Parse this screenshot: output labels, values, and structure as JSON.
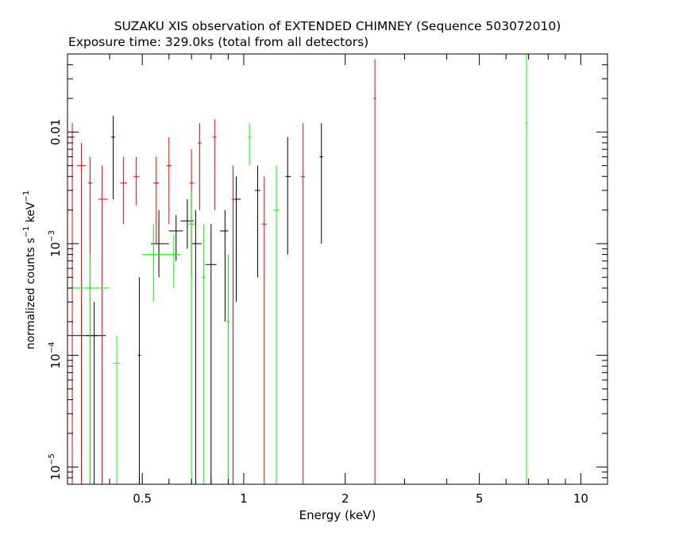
{
  "chart_data": {
    "type": "scatter",
    "title": "SUZAKU XIS observation of EXTENDED CHIMNEY (Sequence 503072010)",
    "subtitle": "Exposure time: 329.0ks (total from all detectors)",
    "xlabel": "Energy (keV)",
    "ylabel": "normalized counts s",
    "ylabel_sup1": "−1",
    "ylabel_mid": " keV",
    "ylabel_sup2": "−1",
    "x_scale": "log",
    "y_scale": "log",
    "xlim": [
      0.3,
      12.0
    ],
    "ylim": [
      7e-06,
      0.05
    ],
    "x_ticks": [
      {
        "value": 0.5,
        "label": "0.5"
      },
      {
        "value": 1,
        "label": "1"
      },
      {
        "value": 2,
        "label": "2"
      },
      {
        "value": 5,
        "label": "5"
      },
      {
        "value": 10,
        "label": "10"
      }
    ],
    "y_ticks": [
      {
        "value": 0.01,
        "label": "0.01"
      },
      {
        "value": 0.001,
        "label": "10",
        "sup": "−3"
      },
      {
        "value": 0.0001,
        "label": "10",
        "sup": "−4"
      },
      {
        "value": 1e-05,
        "label": "10",
        "sup": "−5"
      }
    ],
    "grid": false,
    "series": [
      {
        "color": "#000000",
        "points": [
          {
            "x": 0.33,
            "y": 0.00015,
            "xerr": [
              0.3,
              0.37
            ],
            "yerr": [
              7e-06,
              0.0003
            ]
          },
          {
            "x": 0.36,
            "y": 0.00015,
            "xerr": [
              0.34,
              0.39
            ],
            "yerr": [
              7e-06,
              0.0003
            ]
          },
          {
            "x": 0.41,
            "y": 0.009,
            "xerr": [
              0.405,
              0.415
            ],
            "yerr": [
              0.0025,
              0.014
            ]
          },
          {
            "x": 0.49,
            "y": 0.0001,
            "xerr": [
              0.485,
              0.495
            ],
            "yerr": [
              7e-06,
              0.0005
            ]
          },
          {
            "x": 0.56,
            "y": 0.001,
            "xerr": [
              0.53,
              0.6
            ],
            "yerr": [
              0.0005,
              0.002
            ]
          },
          {
            "x": 0.63,
            "y": 0.0013,
            "xerr": [
              0.6,
              0.66
            ],
            "yerr": [
              0.0007,
              0.0018
            ]
          },
          {
            "x": 0.68,
            "y": 0.0016,
            "xerr": [
              0.65,
              0.71
            ],
            "yerr": [
              0.0009,
              0.0025
            ]
          },
          {
            "x": 0.72,
            "y": 0.001,
            "xerr": [
              0.7,
              0.75
            ],
            "yerr": [
              7e-06,
              0.002
            ]
          },
          {
            "x": 0.8,
            "y": 0.00065,
            "xerr": [
              0.77,
              0.83
            ],
            "yerr": [
              7e-06,
              0.0015
            ]
          },
          {
            "x": 0.88,
            "y": 0.0013,
            "xerr": [
              0.85,
              0.9
            ],
            "yerr": [
              0.0002,
              0.002
            ]
          },
          {
            "x": 0.95,
            "y": 0.0025,
            "xerr": [
              0.93,
              0.98
            ],
            "yerr": [
              0.0003,
              0.004
            ]
          },
          {
            "x": 1.1,
            "y": 0.003,
            "xerr": [
              1.08,
              1.12
            ],
            "yerr": [
              0.0005,
              0.005
            ]
          },
          {
            "x": 1.35,
            "y": 0.004,
            "xerr": [
              1.33,
              1.38
            ],
            "yerr": [
              0.0008,
              0.009
            ]
          },
          {
            "x": 1.7,
            "y": 0.006,
            "xerr": [
              1.68,
              1.72
            ],
            "yerr": [
              0.001,
              0.012
            ]
          }
        ]
      },
      {
        "color": "#ff0000",
        "points": [
          {
            "x": 0.31,
            "y": 0.009,
            "xerr": [
              0.305,
              0.315
            ],
            "yerr": [
              7e-06,
              0.012
            ]
          },
          {
            "x": 0.33,
            "y": 0.005,
            "xerr": [
              0.32,
              0.34
            ],
            "yerr": [
              7e-06,
              0.008
            ]
          },
          {
            "x": 0.35,
            "y": 0.0035,
            "xerr": [
              0.345,
              0.355
            ],
            "yerr": [
              7e-06,
              0.006
            ]
          },
          {
            "x": 0.38,
            "y": 0.0025,
            "xerr": [
              0.37,
              0.395
            ],
            "yerr": [
              7e-06,
              0.005
            ]
          },
          {
            "x": 0.44,
            "y": 0.0035,
            "xerr": [
              0.43,
              0.45
            ],
            "yerr": [
              0.0015,
              0.006
            ]
          },
          {
            "x": 0.48,
            "y": 0.004,
            "xerr": [
              0.47,
              0.49
            ],
            "yerr": [
              0.0022,
              0.006
            ]
          },
          {
            "x": 0.55,
            "y": 0.0035,
            "xerr": [
              0.54,
              0.56
            ],
            "yerr": [
              0.001,
              0.006
            ]
          },
          {
            "x": 0.6,
            "y": 0.005,
            "xerr": [
              0.59,
              0.61
            ],
            "yerr": [
              0.0015,
              0.009
            ]
          },
          {
            "x": 0.7,
            "y": 0.0035,
            "xerr": [
              0.69,
              0.71
            ],
            "yerr": [
              0.0005,
              0.007
            ]
          },
          {
            "x": 0.74,
            "y": 0.008,
            "xerr": [
              0.73,
              0.75
            ],
            "yerr": [
              0.002,
              0.012
            ]
          },
          {
            "x": 0.82,
            "y": 0.009,
            "xerr": [
              0.81,
              0.83
            ],
            "yerr": [
              0.002,
              0.013
            ]
          },
          {
            "x": 0.93,
            "y": 0.0025,
            "xerr": [
              0.92,
              0.94
            ],
            "yerr": [
              7e-06,
              0.005
            ]
          },
          {
            "x": 1.15,
            "y": 0.0015,
            "xerr": [
              1.13,
              1.17
            ],
            "yerr": [
              7e-06,
              0.004
            ]
          },
          {
            "x": 1.5,
            "y": 0.004,
            "xerr": [
              1.48,
              1.52
            ],
            "yerr": [
              7e-06,
              0.012
            ]
          },
          {
            "x": 2.45,
            "y": 0.02,
            "xerr": [
              2.43,
              2.47
            ],
            "yerr": [
              7e-06,
              0.045
            ]
          }
        ]
      },
      {
        "color": "#00ff00",
        "points": [
          {
            "x": 0.35,
            "y": 0.0004,
            "xerr": [
              0.3,
              0.4
            ],
            "yerr": [
              7e-06,
              0.0008
            ]
          },
          {
            "x": 0.42,
            "y": 8.5e-05,
            "xerr": [
              0.41,
              0.43
            ],
            "yerr": [
              7e-06,
              0.00015
            ]
          },
          {
            "x": 0.54,
            "y": 0.0008,
            "xerr": [
              0.5,
              0.59
            ],
            "yerr": [
              0.0003,
              0.0015
            ]
          },
          {
            "x": 0.62,
            "y": 0.0008,
            "xerr": [
              0.59,
              0.65
            ],
            "yerr": [
              0.0004,
              0.0012
            ]
          },
          {
            "x": 0.7,
            "y": 0.0015,
            "xerr": [
              0.68,
              0.72
            ],
            "yerr": [
              7e-06,
              0.003
            ]
          },
          {
            "x": 0.76,
            "y": 0.0005,
            "xerr": [
              0.75,
              0.77
            ],
            "yerr": [
              7e-06,
              0.0015
            ]
          },
          {
            "x": 0.9,
            "y": 0.0002,
            "xerr": [
              0.89,
              0.91
            ],
            "yerr": [
              7e-06,
              0.0008
            ]
          },
          {
            "x": 1.04,
            "y": 0.009,
            "xerr": [
              1.03,
              1.05
            ],
            "yerr": [
              0.005,
              0.012
            ]
          },
          {
            "x": 1.25,
            "y": 0.002,
            "xerr": [
              1.23,
              1.27
            ],
            "yerr": [
              7e-06,
              0.005
            ]
          },
          {
            "x": 6.9,
            "y": 0.012,
            "xerr": [
              6.85,
              6.95
            ],
            "yerr": [
              7e-06,
              0.05
            ]
          }
        ]
      }
    ]
  }
}
